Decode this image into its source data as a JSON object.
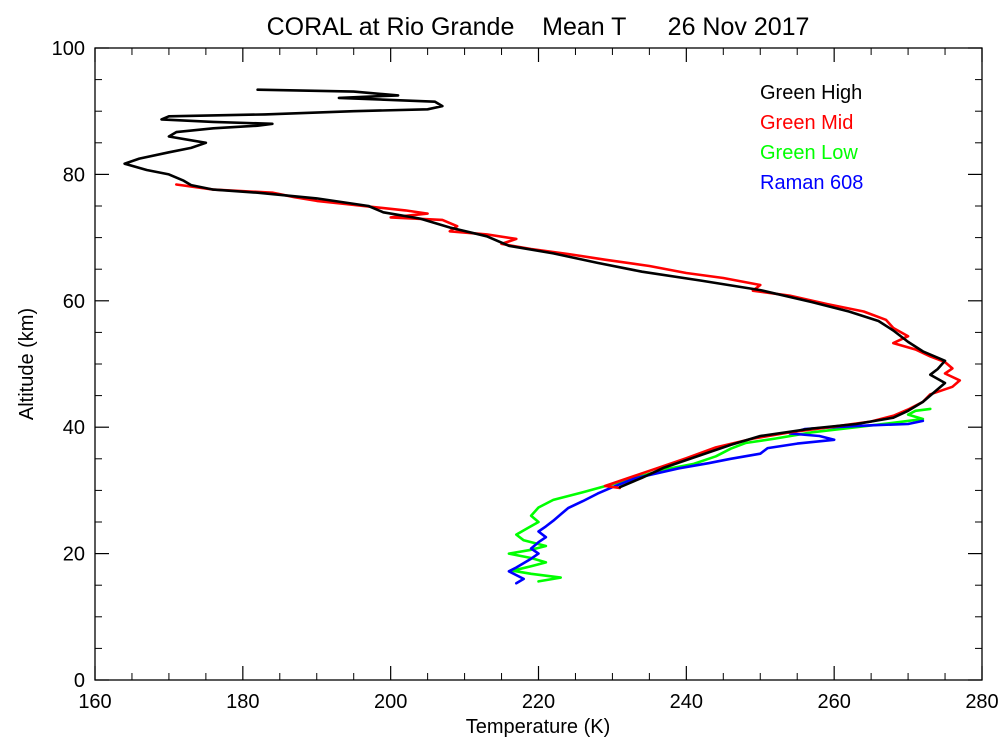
{
  "chart_data": {
    "type": "line",
    "title": "CORAL at Rio Grande    Mean T      26 Nov 2017",
    "xlabel": "Temperature (K)",
    "ylabel": "Altitude (km)",
    "xlim": [
      160,
      280
    ],
    "ylim": [
      0,
      100
    ],
    "xticks": [
      160,
      180,
      200,
      220,
      240,
      260,
      280
    ],
    "yticks": [
      0,
      20,
      40,
      60,
      80,
      100
    ],
    "xtick_labels": [
      "160",
      "180",
      "200",
      "220",
      "240",
      "260",
      "280"
    ],
    "ytick_labels": [
      "0",
      "20",
      "40",
      "60",
      "80",
      "100"
    ],
    "grid": false,
    "legend_position": "top-right",
    "series": [
      {
        "name": "Green High",
        "color": "#000000",
        "points": [
          [
            182,
            93.4
          ],
          [
            195,
            93.1
          ],
          [
            201,
            92.5
          ],
          [
            193,
            92.1
          ],
          [
            206,
            91.5
          ],
          [
            207,
            90.8
          ],
          [
            205,
            90.3
          ],
          [
            195,
            90.0
          ],
          [
            183,
            89.5
          ],
          [
            170,
            89.2
          ],
          [
            169,
            88.7
          ],
          [
            176,
            88.3
          ],
          [
            184,
            88.0
          ],
          [
            182,
            87.7
          ],
          [
            176,
            87.3
          ],
          [
            171,
            86.7
          ],
          [
            170,
            86.0
          ],
          [
            175,
            85.0
          ],
          [
            173,
            84.2
          ],
          [
            170,
            83.5
          ],
          [
            166,
            82.5
          ],
          [
            164,
            81.7
          ],
          [
            167,
            80.7
          ],
          [
            170,
            80.0
          ],
          [
            172,
            79.0
          ],
          [
            173,
            78.3
          ],
          [
            176,
            77.6
          ],
          [
            182,
            77.1
          ],
          [
            190,
            76.2
          ],
          [
            197,
            75.0
          ],
          [
            199,
            74.0
          ],
          [
            204,
            73.0
          ],
          [
            208,
            71.6
          ],
          [
            213,
            70.2
          ],
          [
            216,
            68.7
          ],
          [
            222,
            67.5
          ],
          [
            228,
            66.0
          ],
          [
            234,
            64.6
          ],
          [
            242,
            63.2
          ],
          [
            250,
            61.7
          ],
          [
            257,
            59.8
          ],
          [
            262,
            58.3
          ],
          [
            266,
            56.8
          ],
          [
            268,
            55.3
          ],
          [
            270,
            53.5
          ],
          [
            272,
            52.0
          ],
          [
            275,
            50.5
          ],
          [
            274,
            49.2
          ],
          [
            273,
            48.3
          ],
          [
            275,
            47.0
          ],
          [
            273.5,
            45.5
          ],
          [
            272,
            44.0
          ],
          [
            270,
            42.6
          ],
          [
            268,
            41.5
          ],
          [
            263,
            40.5
          ],
          [
            257,
            39.8
          ],
          [
            250,
            38.6
          ],
          [
            246,
            37.2
          ],
          [
            242,
            35.6
          ],
          [
            237,
            33.6
          ],
          [
            234,
            32.0
          ],
          [
            231,
            30.5
          ]
        ]
      },
      {
        "name": "Green Mid",
        "color": "#ff0000",
        "points": [
          [
            171,
            78.4
          ],
          [
            176,
            77.6
          ],
          [
            184,
            77.1
          ],
          [
            187,
            76.4
          ],
          [
            190,
            75.8
          ],
          [
            194,
            75.3
          ],
          [
            198,
            74.8
          ],
          [
            202,
            74.3
          ],
          [
            205,
            73.8
          ],
          [
            200,
            73.2
          ],
          [
            207,
            72.8
          ],
          [
            209,
            71.8
          ],
          [
            208,
            71.0
          ],
          [
            213,
            70.5
          ],
          [
            217,
            69.8
          ],
          [
            215,
            69.0
          ],
          [
            219,
            68.2
          ],
          [
            224,
            67.4
          ],
          [
            229,
            66.5
          ],
          [
            235,
            65.5
          ],
          [
            240,
            64.4
          ],
          [
            245,
            63.6
          ],
          [
            250,
            62.5
          ],
          [
            249,
            61.6
          ],
          [
            254,
            60.8
          ],
          [
            259,
            59.5
          ],
          [
            264,
            58.3
          ],
          [
            267,
            57.0
          ],
          [
            268,
            55.7
          ],
          [
            270,
            54.4
          ],
          [
            268,
            53.3
          ],
          [
            271,
            52.3
          ],
          [
            273,
            51.2
          ],
          [
            275,
            50.3
          ],
          [
            276,
            49.3
          ],
          [
            275,
            48.5
          ],
          [
            277,
            47.4
          ],
          [
            276,
            46.4
          ],
          [
            273,
            45.2
          ],
          [
            272,
            44.0
          ],
          [
            270,
            42.8
          ],
          [
            268,
            41.8
          ],
          [
            265,
            40.9
          ],
          [
            260,
            40.1
          ],
          [
            254,
            39.2
          ],
          [
            249,
            38.2
          ],
          [
            244,
            36.8
          ],
          [
            240,
            35.1
          ],
          [
            236,
            33.5
          ],
          [
            233,
            32.3
          ],
          [
            229,
            30.7
          ],
          [
            231,
            30.4
          ]
        ]
      },
      {
        "name": "Green Low",
        "color": "#00ff00",
        "points": [
          [
            273,
            42.9
          ],
          [
            271,
            42.6
          ],
          [
            270,
            42.0
          ],
          [
            272,
            41.3
          ],
          [
            268,
            40.7
          ],
          [
            263,
            40.0
          ],
          [
            257,
            39.2
          ],
          [
            252,
            38.2
          ],
          [
            248,
            37.5
          ],
          [
            246,
            36.6
          ],
          [
            244,
            35.4
          ],
          [
            241,
            34.2
          ],
          [
            237,
            33.3
          ],
          [
            234,
            32.3
          ],
          [
            230,
            31.0
          ],
          [
            226,
            29.7
          ],
          [
            222,
            28.5
          ],
          [
            220,
            27.3
          ],
          [
            219,
            26.0
          ],
          [
            220,
            25.0
          ],
          [
            218.5,
            24.0
          ],
          [
            217,
            23.0
          ],
          [
            218,
            22.1
          ],
          [
            221,
            21.2
          ],
          [
            219,
            20.6
          ],
          [
            216,
            20.0
          ],
          [
            219,
            19.3
          ],
          [
            221,
            18.6
          ],
          [
            219,
            18.0
          ],
          [
            216.5,
            17.3
          ],
          [
            219,
            16.8
          ],
          [
            223,
            16.2
          ],
          [
            220,
            15.6
          ]
        ]
      },
      {
        "name": "Raman 608",
        "color": "#0000ff",
        "points": [
          [
            272,
            41.0
          ],
          [
            270,
            40.5
          ],
          [
            265,
            40.3
          ],
          [
            260,
            40.0
          ],
          [
            256,
            39.7
          ],
          [
            254,
            39.0
          ],
          [
            258,
            38.6
          ],
          [
            260,
            38.0
          ],
          [
            255,
            37.4
          ],
          [
            251,
            36.7
          ],
          [
            250,
            35.8
          ],
          [
            246,
            35.0
          ],
          [
            243,
            34.3
          ],
          [
            239,
            33.5
          ],
          [
            236,
            32.7
          ],
          [
            233,
            31.9
          ],
          [
            230,
            30.5
          ],
          [
            228,
            29.5
          ],
          [
            226,
            28.3
          ],
          [
            224,
            27.2
          ],
          [
            223,
            26.2
          ],
          [
            222,
            25.2
          ],
          [
            221,
            24.3
          ],
          [
            220,
            23.5
          ],
          [
            221,
            22.6
          ],
          [
            220,
            21.8
          ],
          [
            219,
            20.8
          ],
          [
            220,
            20.0
          ],
          [
            219,
            19.2
          ],
          [
            218,
            18.5
          ],
          [
            217,
            17.8
          ],
          [
            216,
            17.2
          ],
          [
            217,
            16.6
          ],
          [
            218,
            16.0
          ],
          [
            217,
            15.3
          ]
        ]
      }
    ]
  }
}
